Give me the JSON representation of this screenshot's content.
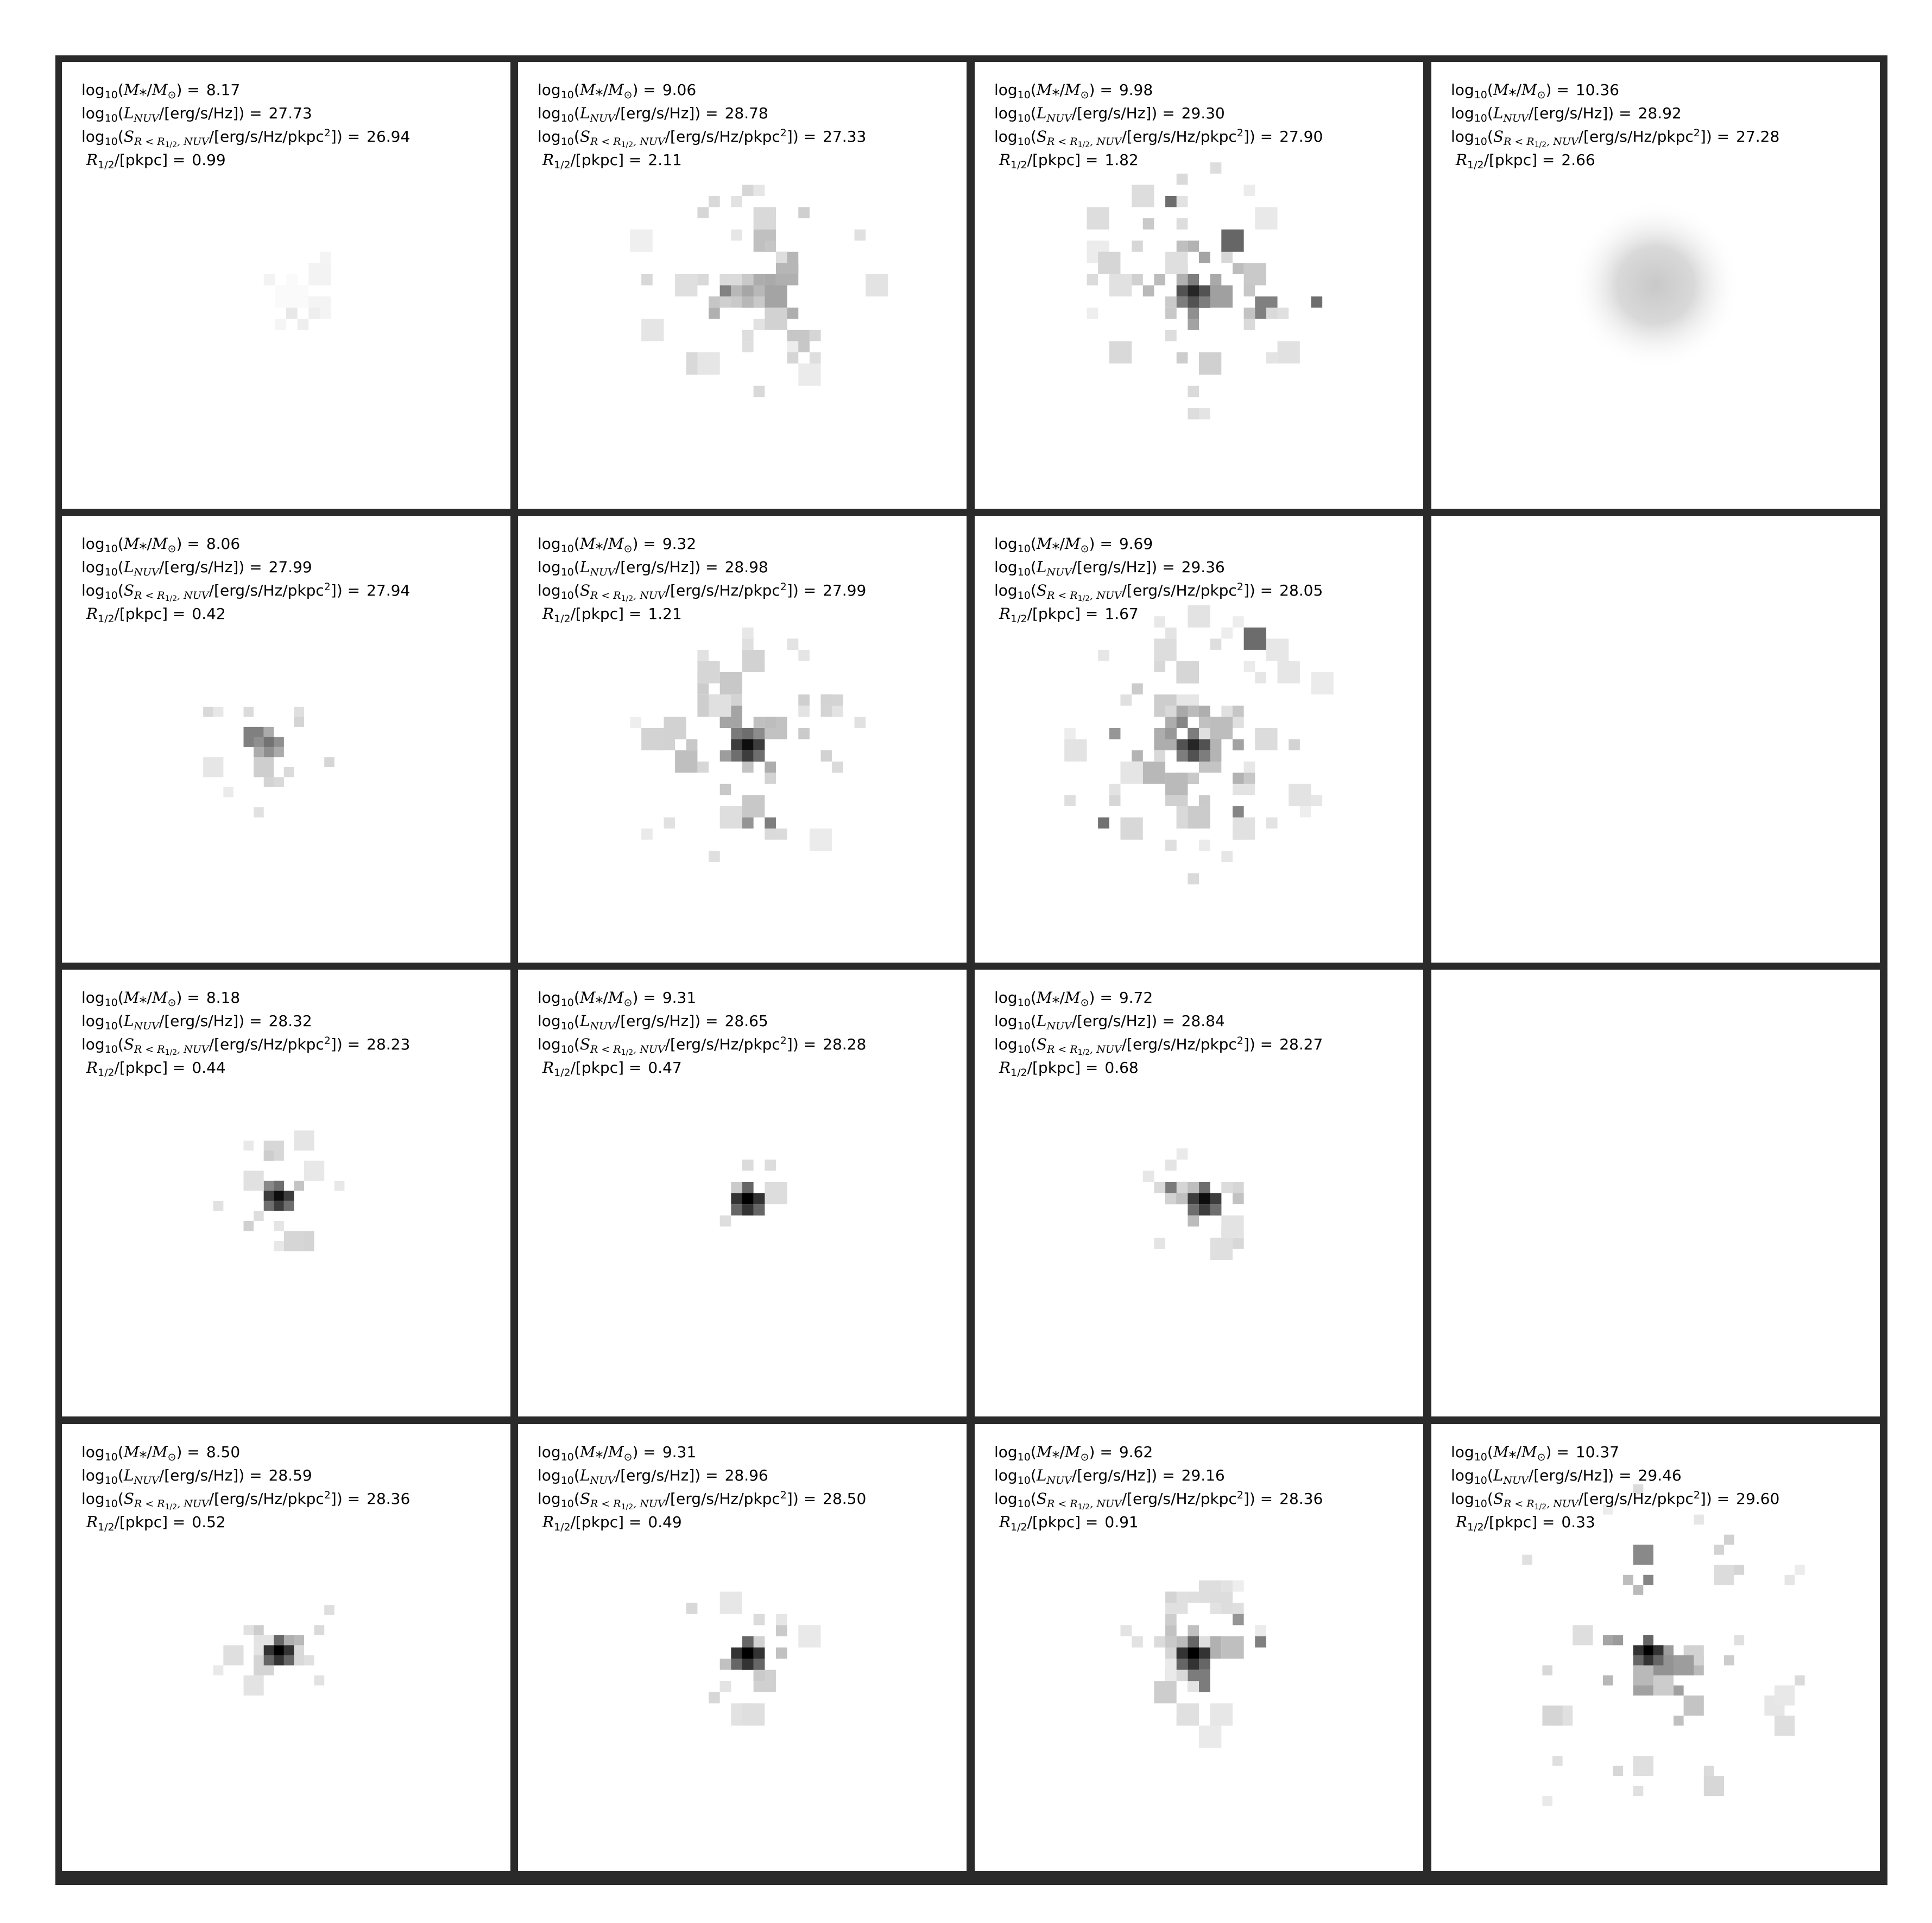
{
  "labels": {
    "log": "log",
    "ten": "10",
    "mass_term": "(M⁎/M",
    "sun": "⊙",
    "lum_term": "(L",
    "lum_sub": "NUV",
    "lum_units": "/[erg/s/Hz])",
    "sb_term": "(S",
    "sb_sub": "R < R",
    "sb_sub2": "1/2",
    "sb_sub3": ", NUV",
    "sb_units": "/[erg/s/Hz/pkpc",
    "sq": "2",
    "sb_close": "])",
    "radius": "R",
    "radius_sub": "1/2",
    "radius_units": "/[pkpc]",
    "eq": "="
  },
  "panels": [
    {
      "row": 0,
      "col": 0,
      "mass": "8.17",
      "lum": "27.73",
      "sb": "26.94",
      "r": "0.99"
    },
    {
      "row": 0,
      "col": 1,
      "mass": "9.06",
      "lum": "28.78",
      "sb": "27.33",
      "r": "2.11"
    },
    {
      "row": 0,
      "col": 2,
      "mass": "9.98",
      "lum": "29.30",
      "sb": "27.90",
      "r": "1.82"
    },
    {
      "row": 0,
      "col": 3,
      "mass": "10.36",
      "lum": "28.92",
      "sb": "27.28",
      "r": "2.66"
    },
    {
      "row": 1,
      "col": 0,
      "mass": "8.06",
      "lum": "27.99",
      "sb": "27.94",
      "r": "0.42"
    },
    {
      "row": 1,
      "col": 1,
      "mass": "9.32",
      "lum": "28.98",
      "sb": "27.99",
      "r": "1.21"
    },
    {
      "row": 1,
      "col": 2,
      "mass": "9.69",
      "lum": "29.36",
      "sb": "28.05",
      "r": "1.67"
    },
    {
      "row": 1,
      "col": 3,
      "empty": true
    },
    {
      "row": 2,
      "col": 0,
      "mass": "8.18",
      "lum": "28.32",
      "sb": "28.23",
      "r": "0.44"
    },
    {
      "row": 2,
      "col": 1,
      "mass": "9.31",
      "lum": "28.65",
      "sb": "28.28",
      "r": "0.47"
    },
    {
      "row": 2,
      "col": 2,
      "mass": "9.72",
      "lum": "28.84",
      "sb": "28.27",
      "r": "0.68"
    },
    {
      "row": 2,
      "col": 3,
      "empty": true
    },
    {
      "row": 3,
      "col": 0,
      "mass": "8.50",
      "lum": "28.59",
      "sb": "28.36",
      "r": "0.52"
    },
    {
      "row": 3,
      "col": 1,
      "mass": "9.31",
      "lum": "28.96",
      "sb": "28.50",
      "r": "0.49"
    },
    {
      "row": 3,
      "col": 2,
      "mass": "9.62",
      "lum": "29.16",
      "sb": "28.36",
      "r": "0.91"
    },
    {
      "row": 3,
      "col": 3,
      "mass": "10.37",
      "lum": "29.46",
      "sb": "29.60",
      "r": "0.33"
    }
  ]
}
